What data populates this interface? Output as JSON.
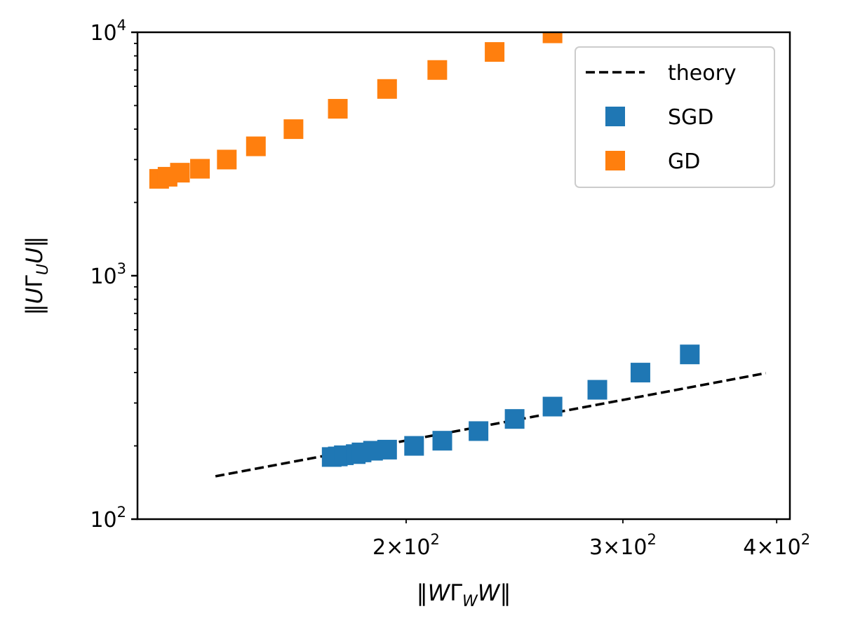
{
  "chart_data": {
    "type": "scatter",
    "title": "",
    "xlabel": "‖WΓ_W W‖",
    "ylabel": "‖UΓ_U U‖",
    "xscale": "log",
    "yscale": "log",
    "xlim": [
      121,
      410
    ],
    "ylim": [
      100,
      10000
    ],
    "xticks": [
      {
        "value": 200,
        "mantissa": "2",
        "base": "10",
        "exp": "2"
      },
      {
        "value": 300,
        "mantissa": "3",
        "base": "10",
        "exp": "2"
      },
      {
        "value": 400,
        "mantissa": "4",
        "base": "10",
        "exp": "2"
      }
    ],
    "yticks": [
      {
        "value": 100,
        "base": "10",
        "exp": "2"
      },
      {
        "value": 1000,
        "base": "10",
        "exp": "3"
      },
      {
        "value": 10000,
        "base": "10",
        "exp": "4"
      }
    ],
    "legend_position": "top-right",
    "series": [
      {
        "name": "theory",
        "kind": "line",
        "style": "dashed",
        "color": "#000000",
        "x": [
          140,
          392
        ],
        "y": [
          150,
          398
        ]
      },
      {
        "name": "SGD",
        "kind": "scatter",
        "marker": "square",
        "color": "#1f77b4",
        "x": [
          174,
          176,
          178,
          182,
          184,
          188,
          193,
          203,
          214,
          229,
          245,
          263,
          286,
          310,
          340
        ],
        "y": [
          180,
          181,
          183,
          185,
          188,
          191,
          193,
          200,
          210,
          230,
          258,
          290,
          340,
          400,
          475
        ]
      },
      {
        "name": "GD",
        "kind": "scatter",
        "marker": "square",
        "color": "#ff7f0e",
        "x": [
          126,
          128,
          131,
          136,
          143,
          151,
          162,
          176,
          193,
          212,
          236,
          263
        ],
        "y": [
          2500,
          2550,
          2650,
          2750,
          3000,
          3400,
          4000,
          4850,
          5850,
          7000,
          8300,
          9900
        ]
      }
    ]
  }
}
